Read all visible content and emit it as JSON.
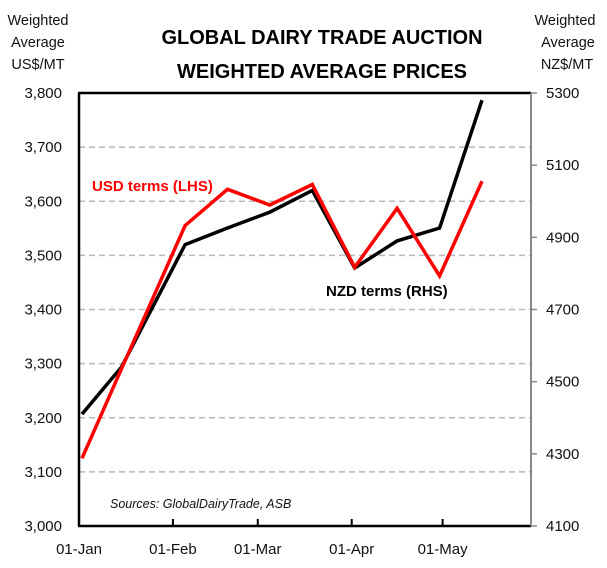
{
  "chart_data": {
    "type": "line",
    "title": [
      "GLOBAL DAIRY TRADE AUCTION",
      "WEIGHTED AVERAGE PRICES"
    ],
    "left_axis_title": [
      "Weighted",
      "Average",
      "US$/MT"
    ],
    "right_axis_title": [
      "Weighted",
      "Average",
      "NZ$/MT"
    ],
    "left_ylim": [
      3000,
      3800
    ],
    "right_ylim": [
      4100,
      5300
    ],
    "left_ticks": [
      "3,000",
      "3,100",
      "3,200",
      "3,300",
      "3,400",
      "3,500",
      "3,600",
      "3,700",
      "3,800"
    ],
    "left_tick_values": [
      3000,
      3100,
      3200,
      3300,
      3400,
      3500,
      3600,
      3700,
      3800
    ],
    "right_ticks": [
      "4100",
      "4300",
      "4500",
      "4700",
      "4900",
      "5100",
      "5300"
    ],
    "right_tick_values": [
      4100,
      4300,
      4500,
      4700,
      4900,
      5100,
      5300
    ],
    "x_ticks": [
      "01-Jan",
      "01-Feb",
      "01-Mar",
      "01-Apr",
      "01-May"
    ],
    "x_tick_days": [
      0,
      31,
      59,
      90,
      120
    ],
    "x_range_days": [
      0,
      149
    ],
    "grid": "horizontal dashed",
    "series": [
      {
        "name": "USD terms (LHS)",
        "axis": "left",
        "color": "#ff0000",
        "days": [
          1,
          14,
          35,
          49,
          63,
          77,
          91,
          105,
          119,
          133
        ],
        "values": [
          3125,
          3290,
          3555,
          3622,
          3593,
          3631,
          3478,
          3587,
          3462,
          3637
        ]
      },
      {
        "name": "NZD terms (RHS)",
        "axis": "right",
        "color": "#000000",
        "days": [
          1,
          14,
          35,
          49,
          63,
          77,
          91,
          105,
          119,
          133
        ],
        "values": [
          4410,
          4540,
          4880,
          4926,
          4970,
          5030,
          4815,
          4890,
          4926,
          5280
        ]
      }
    ],
    "source": "Sources: GlobalDairyTrade, ASB"
  }
}
